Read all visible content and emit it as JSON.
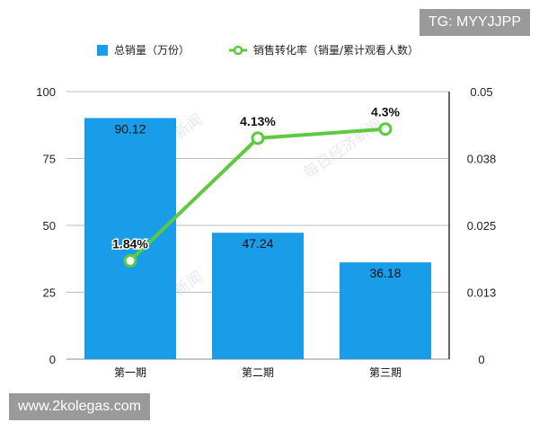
{
  "chart_data": {
    "type": "bar+line",
    "categories": [
      "第一期",
      "第二期",
      "第三期"
    ],
    "series": [
      {
        "name": "总销量（万份）",
        "type": "bar",
        "axis": "left",
        "values": [
          90.12,
          47.24,
          36.18
        ],
        "labels": [
          "90.12",
          "47.24",
          "36.18"
        ],
        "color": "#1a9de8"
      },
      {
        "name": "销售转化率（销量/累计观看人数）",
        "type": "line",
        "axis": "right",
        "values": [
          0.0184,
          0.0413,
          0.043
        ],
        "labels": [
          "1.84%",
          "4.13%",
          "4.3%"
        ],
        "color": "#5cc93e"
      }
    ],
    "y_left": {
      "min": 0,
      "max": 100,
      "ticks": [
        "0",
        "25",
        "50",
        "75",
        "100"
      ]
    },
    "y_right": {
      "min": 0,
      "max": 0.05,
      "ticks": [
        "0",
        "0.013",
        "0.025",
        "0.038",
        "0.05"
      ]
    },
    "grid": true,
    "legend": "top"
  },
  "badges": {
    "tg": "TG: MYYJJPP",
    "site": "www.2kolegas.com"
  },
  "watermark": "每日经济新闻"
}
